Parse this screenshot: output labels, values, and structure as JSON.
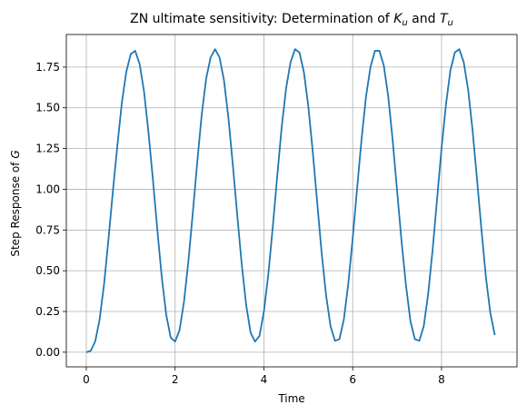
{
  "chart_data": {
    "type": "line",
    "title": {
      "prefix": "ZN ultimate sensitivity: Determination of ",
      "k_symbol": "K",
      "k_sub": "u",
      "and": " and ",
      "t_symbol": "T",
      "t_sub": "u"
    },
    "xlabel": "Time",
    "ylabel": {
      "prefix": "Step Response of ",
      "symbol": "G"
    },
    "xlim": [
      -0.45,
      9.7
    ],
    "ylim": [
      -0.09,
      1.95
    ],
    "xticks": [
      0,
      2,
      4,
      6,
      8
    ],
    "xtick_labels": [
      "0",
      "2",
      "4",
      "6",
      "8"
    ],
    "yticks": [
      0.0,
      0.25,
      0.5,
      0.75,
      1.0,
      1.25,
      1.5,
      1.75
    ],
    "ytick_labels": [
      "0.00",
      "0.25",
      "0.50",
      "0.75",
      "1.00",
      "1.25",
      "1.50",
      "1.75"
    ],
    "grid": true,
    "line_color": "#1f77b4",
    "series": [
      {
        "x": [
          0.0,
          0.1,
          0.2,
          0.3,
          0.4,
          0.5,
          0.6,
          0.7,
          0.8,
          0.9,
          1.0,
          1.1,
          1.2,
          1.3,
          1.4,
          1.5,
          1.6,
          1.7,
          1.8,
          1.9,
          2.0,
          2.1,
          2.2,
          2.3,
          2.4,
          2.5,
          2.6,
          2.7,
          2.8,
          2.9,
          3.0,
          3.1,
          3.2,
          3.3,
          3.4,
          3.5,
          3.6,
          3.7,
          3.8,
          3.9,
          4.0,
          4.1,
          4.2,
          4.3,
          4.4,
          4.5,
          4.6,
          4.7,
          4.8,
          4.9,
          5.0,
          5.1,
          5.2,
          5.3,
          5.4,
          5.5,
          5.6,
          5.7,
          5.8,
          5.9,
          6.0,
          6.1,
          6.2,
          6.3,
          6.4,
          6.5,
          6.6,
          6.7,
          6.8,
          6.9,
          7.0,
          7.1,
          7.2,
          7.3,
          7.4,
          7.5,
          7.6,
          7.7,
          7.8,
          7.9,
          8.0,
          8.1,
          8.2,
          8.3,
          8.4,
          8.5,
          8.6,
          8.7,
          8.8,
          8.9,
          9.0,
          9.1,
          9.2
        ],
        "y": [
          0.0,
          0.009,
          0.066,
          0.201,
          0.418,
          0.695,
          0.992,
          1.27,
          1.53,
          1.72,
          1.83,
          1.85,
          1.77,
          1.6,
          1.35,
          1.06,
          0.75,
          0.46,
          0.23,
          0.09,
          0.065,
          0.135,
          0.31,
          0.56,
          0.86,
          1.17,
          1.46,
          1.68,
          1.81,
          1.86,
          1.81,
          1.67,
          1.44,
          1.15,
          0.84,
          0.54,
          0.29,
          0.12,
          0.065,
          0.1,
          0.25,
          0.48,
          0.77,
          1.08,
          1.38,
          1.62,
          1.78,
          1.86,
          1.84,
          1.72,
          1.51,
          1.23,
          0.92,
          0.61,
          0.35,
          0.16,
          0.07,
          0.08,
          0.2,
          0.42,
          0.7,
          1.01,
          1.31,
          1.57,
          1.75,
          1.85,
          1.85,
          1.76,
          1.57,
          1.3,
          0.99,
          0.68,
          0.41,
          0.19,
          0.08,
          0.07,
          0.16,
          0.36,
          0.63,
          0.94,
          1.25,
          1.52,
          1.73,
          1.84,
          1.86,
          1.78,
          1.61,
          1.36,
          1.06,
          0.75,
          0.46,
          0.24,
          0.105
        ]
      }
    ]
  }
}
